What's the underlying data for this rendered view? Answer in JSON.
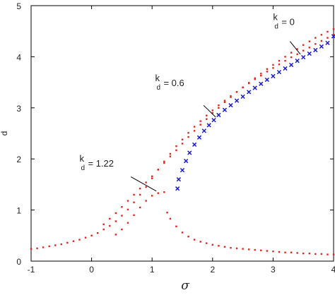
{
  "chart_data": {
    "type": "scatter",
    "xlabel": "σ",
    "ylabel": "d",
    "xlim": [
      -1,
      4
    ],
    "ylim": [
      0,
      5
    ],
    "xticks": [
      -1,
      0,
      1,
      2,
      3,
      4
    ],
    "yticks": [
      0,
      1,
      2,
      3,
      4,
      5
    ],
    "grid": false,
    "colors": {
      "dots": "#e8231b",
      "cross": "#1a1ad6",
      "axis": "#000000"
    },
    "series": [
      {
        "marker": "dot",
        "color": "#e8231b",
        "points": [
          [
            -1.0,
            0.24
          ],
          [
            -0.9,
            0.25
          ],
          [
            -0.8,
            0.27
          ],
          [
            -0.7,
            0.29
          ],
          [
            -0.6,
            0.31
          ],
          [
            -0.5,
            0.33
          ],
          [
            -0.4,
            0.36
          ],
          [
            -0.3,
            0.39
          ],
          [
            -0.2,
            0.42
          ],
          [
            -0.1,
            0.46
          ],
          [
            0.0,
            0.5
          ],
          [
            0.1,
            0.55
          ],
          [
            0.2,
            0.62
          ],
          [
            0.3,
            0.69
          ],
          [
            0.4,
            0.78
          ],
          [
            0.5,
            0.89
          ],
          [
            0.6,
            1.01
          ],
          [
            0.7,
            1.15
          ],
          [
            0.8,
            1.3
          ],
          [
            0.9,
            1.45
          ],
          [
            1.0,
            1.62
          ],
          [
            1.1,
            1.79
          ],
          [
            1.2,
            1.95
          ],
          [
            1.3,
            2.1
          ],
          [
            1.4,
            2.25
          ],
          [
            1.5,
            2.38
          ],
          [
            1.6,
            2.51
          ],
          [
            1.7,
            2.63
          ],
          [
            1.8,
            2.74
          ],
          [
            1.9,
            2.85
          ],
          [
            2.0,
            2.95
          ],
          [
            2.1,
            3.05
          ],
          [
            2.2,
            3.14
          ],
          [
            2.3,
            3.23
          ],
          [
            2.4,
            3.31
          ],
          [
            2.5,
            3.4
          ],
          [
            2.6,
            3.48
          ],
          [
            2.7,
            3.56
          ],
          [
            2.8,
            3.63
          ],
          [
            2.9,
            3.71
          ],
          [
            3.0,
            3.78
          ],
          [
            3.1,
            3.85
          ],
          [
            3.2,
            3.92
          ],
          [
            3.3,
            3.99
          ],
          [
            3.4,
            4.05
          ],
          [
            3.5,
            4.12
          ],
          [
            3.6,
            4.18
          ],
          [
            3.7,
            4.25
          ],
          [
            3.8,
            4.31
          ],
          [
            3.9,
            4.37
          ],
          [
            4.0,
            4.43
          ]
        ]
      },
      {
        "marker": "dot",
        "color": "#e8231b",
        "points": [
          [
            0.2,
            0.72
          ],
          [
            0.3,
            0.83
          ],
          [
            0.4,
            0.94
          ],
          [
            0.5,
            1.06
          ],
          [
            0.6,
            1.18
          ],
          [
            0.7,
            1.3
          ],
          [
            0.8,
            1.42
          ],
          [
            0.9,
            1.54
          ],
          [
            1.0,
            1.66
          ],
          [
            1.1,
            1.79
          ],
          [
            1.2,
            1.92
          ],
          [
            1.3,
            2.05
          ],
          [
            1.4,
            2.17
          ],
          [
            1.5,
            2.3
          ],
          [
            1.6,
            2.43
          ],
          [
            1.7,
            2.55
          ],
          [
            1.8,
            2.67
          ],
          [
            1.9,
            2.78
          ],
          [
            2.0,
            2.9
          ],
          [
            2.1,
            3.0
          ],
          [
            2.2,
            3.11
          ],
          [
            2.3,
            3.21
          ],
          [
            2.4,
            3.31
          ],
          [
            2.5,
            3.4
          ],
          [
            2.6,
            3.49
          ],
          [
            2.7,
            3.58
          ],
          [
            2.8,
            3.67
          ],
          [
            2.9,
            3.76
          ],
          [
            3.0,
            3.84
          ],
          [
            3.1,
            3.92
          ],
          [
            3.2,
            4.0
          ],
          [
            3.3,
            4.08
          ],
          [
            3.4,
            4.15
          ],
          [
            3.5,
            4.23
          ],
          [
            3.6,
            4.3
          ],
          [
            3.7,
            4.37
          ],
          [
            3.8,
            4.43
          ],
          [
            3.9,
            4.49
          ],
          [
            4.0,
            4.54
          ]
        ]
      },
      {
        "marker": "dot",
        "color": "#e8231b",
        "points": [
          [
            0.4,
            0.52
          ],
          [
            0.5,
            0.62
          ],
          [
            0.6,
            0.75
          ],
          [
            0.7,
            0.9
          ],
          [
            0.8,
            1.05
          ],
          [
            0.9,
            1.18
          ],
          [
            1.0,
            1.28
          ],
          [
            1.1,
            1.33
          ],
          [
            1.2,
            1.35
          ]
        ]
      },
      {
        "marker": "dot",
        "color": "#e8231b",
        "points": [
          [
            1.25,
            0.95
          ],
          [
            1.3,
            0.83
          ],
          [
            1.4,
            0.68
          ],
          [
            1.5,
            0.56
          ],
          [
            1.6,
            0.48
          ],
          [
            1.7,
            0.42
          ],
          [
            1.8,
            0.38
          ],
          [
            1.9,
            0.35
          ],
          [
            2.0,
            0.32
          ],
          [
            2.1,
            0.3
          ],
          [
            2.2,
            0.28
          ],
          [
            2.3,
            0.26
          ],
          [
            2.4,
            0.25
          ],
          [
            2.5,
            0.24
          ],
          [
            2.6,
            0.23
          ],
          [
            2.7,
            0.22
          ],
          [
            2.8,
            0.21
          ],
          [
            2.9,
            0.2
          ],
          [
            3.0,
            0.19
          ],
          [
            3.1,
            0.18
          ],
          [
            3.2,
            0.17
          ],
          [
            3.3,
            0.17
          ],
          [
            3.4,
            0.16
          ],
          [
            3.5,
            0.15
          ],
          [
            3.6,
            0.15
          ],
          [
            3.7,
            0.14
          ],
          [
            3.8,
            0.14
          ],
          [
            3.9,
            0.13
          ],
          [
            4.0,
            0.13
          ]
        ]
      },
      {
        "marker": "cross",
        "color": "#1a1ad6",
        "points": [
          [
            1.42,
            1.42
          ],
          [
            1.44,
            1.6
          ],
          [
            1.5,
            1.78
          ],
          [
            1.56,
            1.96
          ],
          [
            1.62,
            2.12
          ],
          [
            1.7,
            2.28
          ],
          [
            1.78,
            2.42
          ],
          [
            1.86,
            2.55
          ],
          [
            1.94,
            2.66
          ],
          [
            2.02,
            2.76
          ],
          [
            2.1,
            2.86
          ],
          [
            2.2,
            2.96
          ],
          [
            2.3,
            3.05
          ],
          [
            2.4,
            3.14
          ],
          [
            2.5,
            3.22
          ],
          [
            2.6,
            3.31
          ],
          [
            2.7,
            3.39
          ],
          [
            2.8,
            3.47
          ],
          [
            2.9,
            3.55
          ],
          [
            3.0,
            3.62
          ],
          [
            3.1,
            3.7
          ],
          [
            3.2,
            3.77
          ],
          [
            3.3,
            3.84
          ],
          [
            3.4,
            3.92
          ],
          [
            3.5,
            3.99
          ],
          [
            3.6,
            4.06
          ],
          [
            3.7,
            4.13
          ],
          [
            3.8,
            4.2
          ],
          [
            3.9,
            4.27
          ],
          [
            4.0,
            4.4
          ]
        ]
      }
    ],
    "annotations": [
      {
        "main": "k",
        "sub": "d",
        "rest": " = 0",
        "anchor": [
          3.0,
          4.72
        ],
        "line": [
          [
            3.28,
            4.3
          ],
          [
            3.45,
            4.05
          ]
        ]
      },
      {
        "main": "k",
        "sub": "d",
        "rest": " = 0.6",
        "anchor": [
          1.05,
          3.52
        ],
        "line": [
          [
            1.85,
            3.05
          ],
          [
            2.05,
            2.82
          ]
        ]
      },
      {
        "main": "k",
        "sub": "d",
        "rest": " = 1.22",
        "anchor": [
          -0.2,
          1.95
        ],
        "line": [
          [
            0.65,
            1.65
          ],
          [
            1.07,
            1.37
          ]
        ]
      }
    ]
  }
}
